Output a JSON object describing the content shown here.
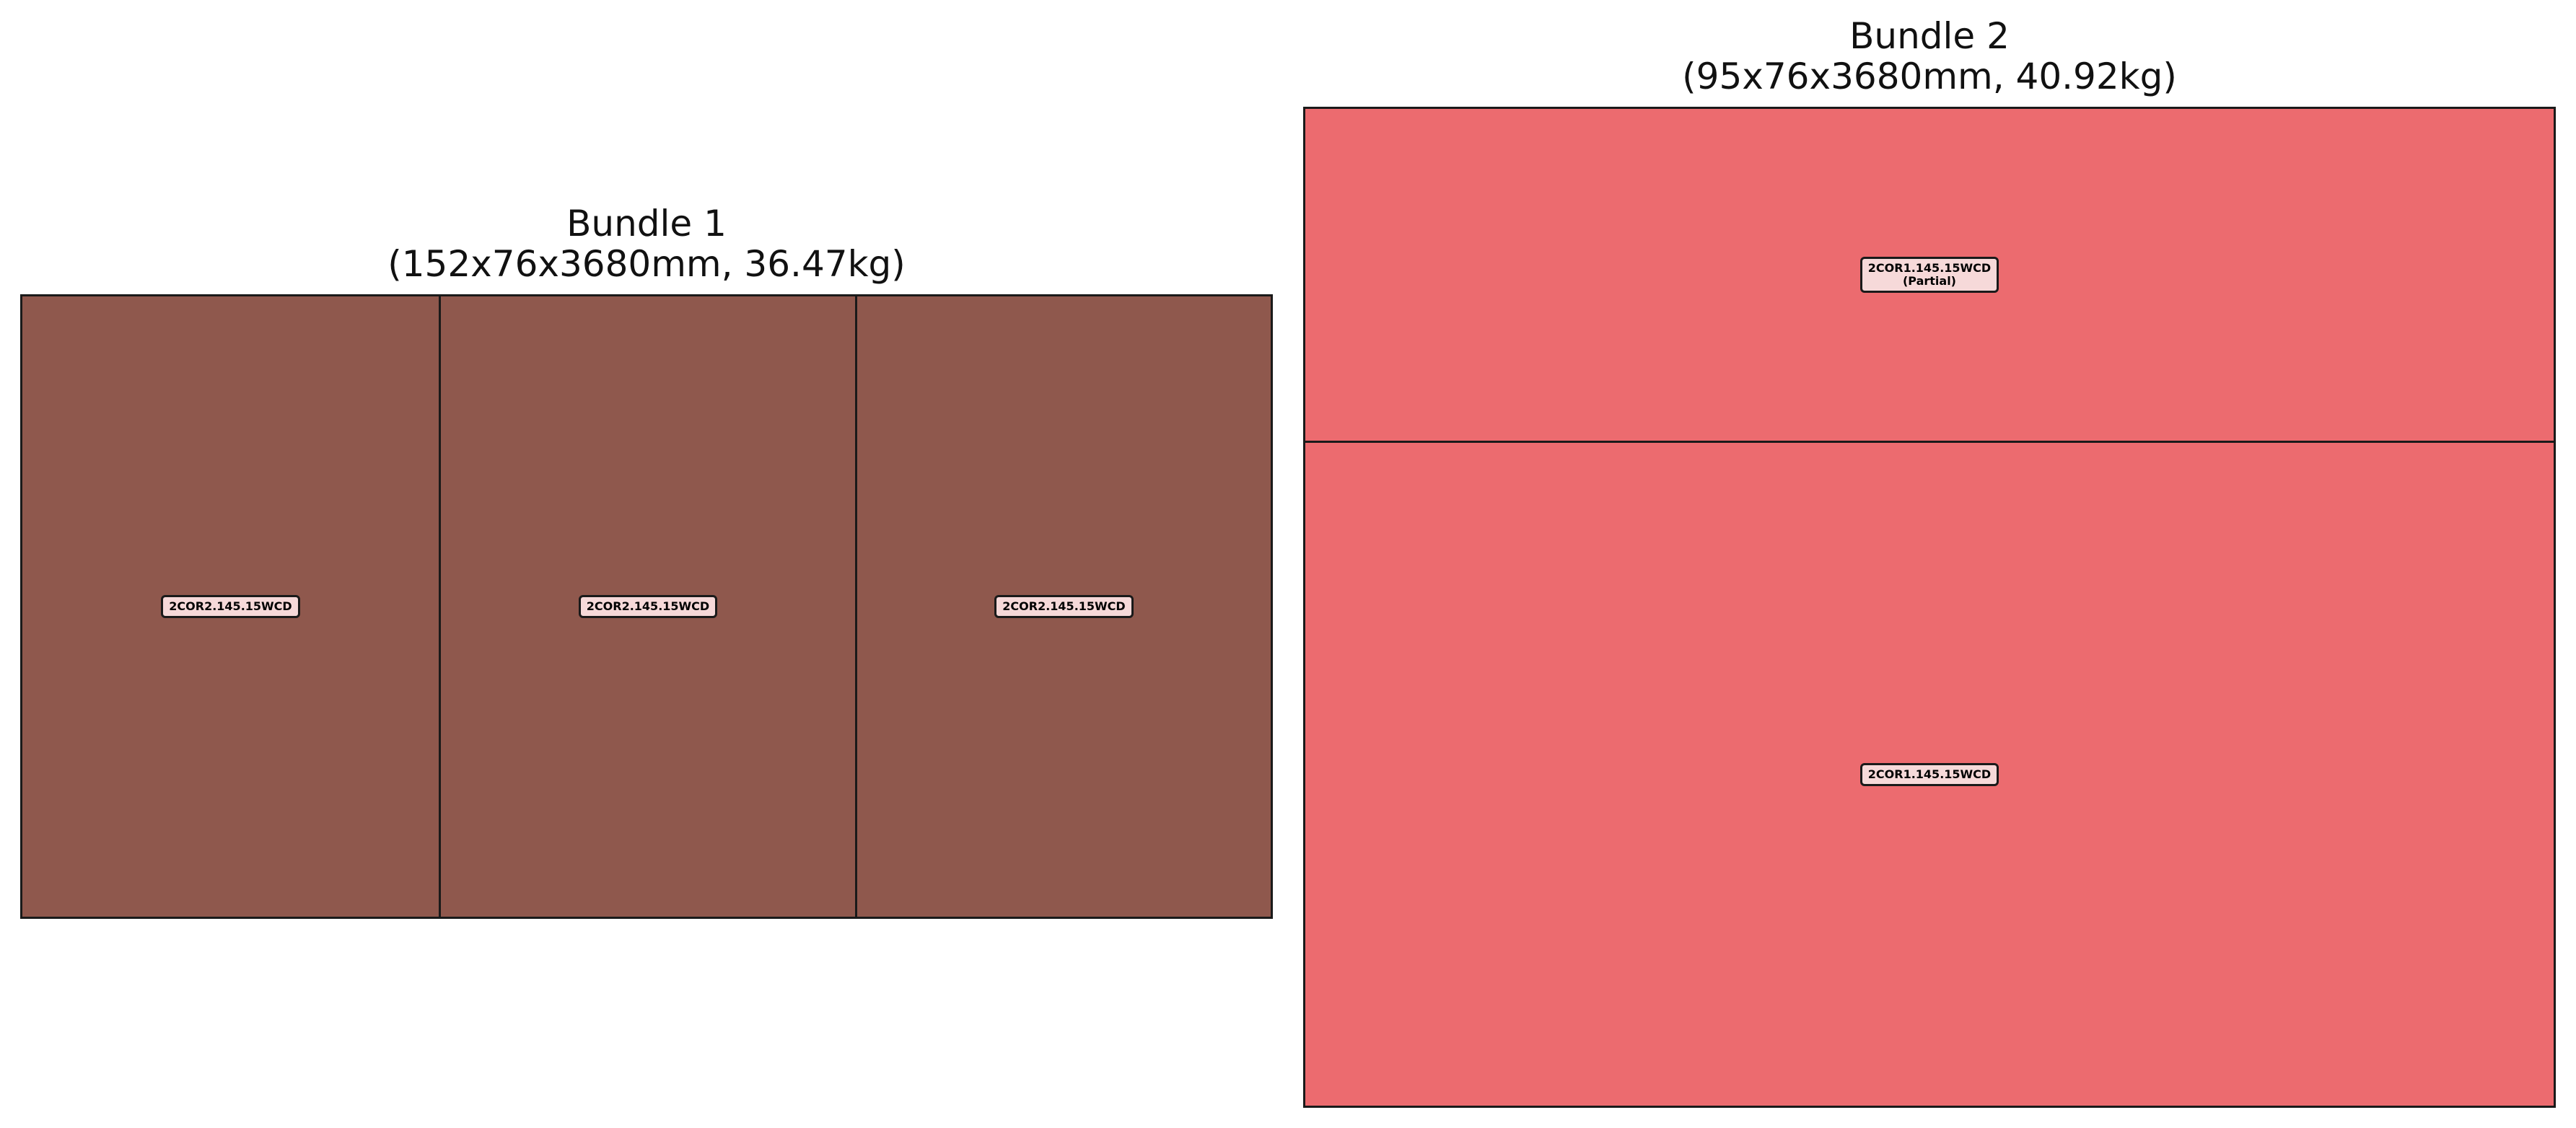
{
  "bundles": [
    {
      "title": "Bundle 1",
      "subtitle": "(152x76x3680mm, 36.47kg)",
      "color": "#8f584d",
      "layout": "columns",
      "pieces": [
        {
          "lines": [
            "2COR2.145.15WCD"
          ],
          "fraction": 0.3333
        },
        {
          "lines": [
            "2COR2.145.15WCD"
          ],
          "fraction": 0.3333
        },
        {
          "lines": [
            "2COR2.145.15WCD"
          ],
          "fraction": 0.3334
        }
      ]
    },
    {
      "title": "Bundle 2",
      "subtitle": "(95x76x3680mm, 40.92kg)",
      "color": "#ec6b6f",
      "layout": "rows",
      "pieces": [
        {
          "lines": [
            "2COR1.145.15WCD",
            "(Partial)"
          ],
          "fraction": 0.333
        },
        {
          "lines": [
            "2COR1.145.15WCD"
          ],
          "fraction": 0.667
        }
      ]
    }
  ]
}
